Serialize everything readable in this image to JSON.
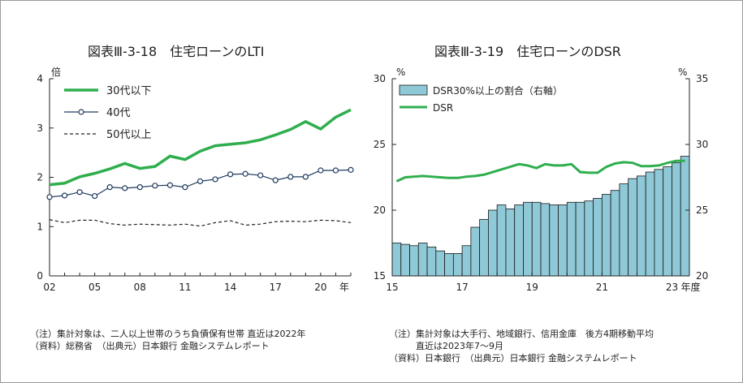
{
  "chart_data": [
    {
      "type": "line",
      "title": "図表Ⅲ-3-18　住宅ローンのLTI",
      "y_unit": "倍",
      "x_unit": "年",
      "ylim": [
        0,
        4
      ],
      "yticks": [
        "0",
        "1",
        "2",
        "3",
        "4"
      ],
      "xticks": [
        "02",
        "05",
        "08",
        "11",
        "14",
        "17",
        "20"
      ],
      "x": [
        2002,
        2003,
        2004,
        2005,
        2006,
        2007,
        2008,
        2009,
        2010,
        2011,
        2012,
        2013,
        2014,
        2015,
        2016,
        2017,
        2018,
        2019,
        2020,
        2021,
        2022
      ],
      "series": [
        {
          "name": "30代以下",
          "color": "#2fae4e",
          "style": "solid-thick",
          "values": [
            1.85,
            1.88,
            2.01,
            2.08,
            2.17,
            2.28,
            2.18,
            2.22,
            2.43,
            2.36,
            2.53,
            2.64,
            2.67,
            2.7,
            2.76,
            2.86,
            2.97,
            3.13,
            2.98,
            3.22,
            3.37
          ]
        },
        {
          "name": "40代",
          "color": "#1f3a5f",
          "style": "solid-marker",
          "values": [
            1.6,
            1.63,
            1.7,
            1.62,
            1.8,
            1.78,
            1.8,
            1.83,
            1.84,
            1.8,
            1.92,
            1.96,
            2.06,
            2.07,
            2.04,
            1.94,
            2.01,
            2.01,
            2.14,
            2.14,
            2.15
          ]
        },
        {
          "name": "50代以上",
          "color": "#222222",
          "style": "dashed",
          "values": [
            1.14,
            1.08,
            1.13,
            1.13,
            1.06,
            1.03,
            1.05,
            1.04,
            1.03,
            1.05,
            1.01,
            1.08,
            1.12,
            1.03,
            1.05,
            1.1,
            1.11,
            1.1,
            1.13,
            1.12,
            1.08
          ]
        }
      ],
      "legend": "top-left",
      "notes": [
        "（注）集計対象は、二人以上世帯のうち負債保有世帯 直近は2022年",
        "（資料）総務省　（出典元）日本銀行 金融システムレポート"
      ]
    },
    {
      "type": "bar+line",
      "title": "図表Ⅲ-3-19　住宅ローンのDSR",
      "y_left_unit": "%",
      "y_right_unit": "%",
      "x_unit": "年度",
      "ylim_left": [
        15,
        30
      ],
      "ylim_right": [
        20,
        35
      ],
      "yticks_left": [
        "15",
        "20",
        "25",
        "30"
      ],
      "yticks_right": [
        "20",
        "25",
        "30",
        "35"
      ],
      "xticks": [
        "15",
        "17",
        "19",
        "21",
        "23"
      ],
      "x_start": 2015,
      "x_end": 2023.5,
      "bar_series": {
        "name": "DSR30%以上の割合（右軸）",
        "axis": "right",
        "color": "#8fc8d6",
        "values": [
          22.5,
          22.4,
          22.3,
          22.5,
          22.2,
          21.9,
          21.7,
          21.7,
          22.3,
          23.7,
          24.3,
          25.0,
          25.4,
          25.1,
          25.4,
          25.6,
          25.6,
          25.5,
          25.4,
          25.4,
          25.6,
          25.6,
          25.7,
          25.9,
          26.2,
          26.5,
          27.0,
          27.4,
          27.6,
          27.9,
          28.1,
          28.3,
          28.6,
          29.1
        ]
      },
      "line_series": {
        "name": "DSR",
        "axis": "left",
        "color": "#2fae4e",
        "values": [
          22.2,
          22.5,
          22.55,
          22.6,
          22.55,
          22.5,
          22.45,
          22.45,
          22.55,
          22.6,
          22.7,
          22.9,
          23.1,
          23.3,
          23.5,
          23.4,
          23.2,
          23.5,
          23.4,
          23.4,
          23.5,
          22.9,
          22.85,
          22.85,
          23.3,
          23.55,
          23.65,
          23.6,
          23.35,
          23.35,
          23.4,
          23.6,
          23.75,
          23.75
        ]
      },
      "legend": "top-left",
      "notes": [
        "（注）集計対象は大手行、地域銀行、信用金庫　後方4期移動平均",
        "　　　直近は2023年7～9月",
        "（資料）日本銀行　（出典元）日本銀行 金融システムレポート"
      ]
    }
  ]
}
